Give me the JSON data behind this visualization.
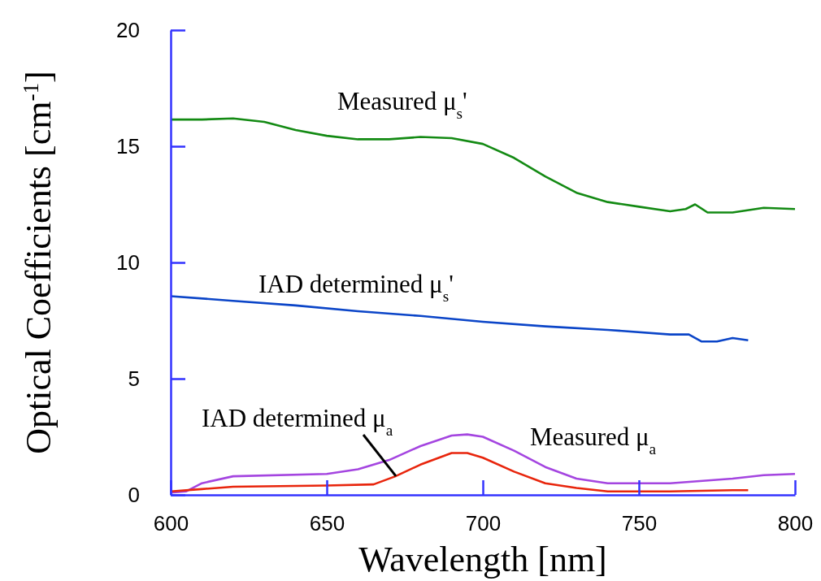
{
  "chart_data": {
    "type": "line",
    "xlabel": "Wavelength [nm]",
    "ylabel": "Optical Coefficients [cm$^{-1}$]",
    "xlim": [
      600,
      800
    ],
    "ylim": [
      0,
      20
    ],
    "xticks": [
      600,
      650,
      700,
      750,
      800
    ],
    "yticks": [
      0,
      5,
      10,
      15,
      20
    ],
    "grid": false,
    "legend": false,
    "marker": "none",
    "line_style": "solid",
    "series": [
      {
        "name": "Measured μ$_{s}$'",
        "color": "#138a13",
        "x": [
          600,
          610,
          620,
          630,
          640,
          650,
          660,
          670,
          680,
          690,
          700,
          710,
          720,
          730,
          740,
          750,
          760,
          765,
          768,
          772,
          780,
          790,
          800
        ],
        "values": [
          16.15,
          16.15,
          16.2,
          16.05,
          15.7,
          15.45,
          15.3,
          15.3,
          15.4,
          15.35,
          15.1,
          14.5,
          13.7,
          13.0,
          12.6,
          12.4,
          12.2,
          12.3,
          12.5,
          12.15,
          12.15,
          12.35,
          12.3
        ]
      },
      {
        "name": "IAD determined μ$_{s}$'",
        "color": "#0b45c8",
        "x": [
          600,
          620,
          640,
          660,
          680,
          700,
          720,
          740,
          760,
          766,
          770,
          775,
          780,
          785
        ],
        "values": [
          8.55,
          8.35,
          8.15,
          7.9,
          7.7,
          7.45,
          7.25,
          7.1,
          6.9,
          6.9,
          6.6,
          6.6,
          6.75,
          6.65
        ]
      },
      {
        "name": "Measured μ$_{a}$",
        "color": "#a445e0",
        "x": [
          600,
          605,
          610,
          620,
          650,
          660,
          670,
          680,
          690,
          695,
          700,
          710,
          720,
          730,
          740,
          760,
          780,
          790,
          800
        ],
        "values": [
          0.1,
          0.15,
          0.5,
          0.8,
          0.9,
          1.1,
          1.5,
          2.1,
          2.55,
          2.6,
          2.5,
          1.9,
          1.2,
          0.7,
          0.5,
          0.5,
          0.7,
          0.85,
          0.9
        ]
      },
      {
        "name": "IAD determined μ$_{a}$",
        "color": "#e8250c",
        "x": [
          600,
          610,
          620,
          650,
          665,
          672,
          680,
          690,
          695,
          700,
          710,
          720,
          730,
          740,
          760,
          780,
          785
        ],
        "values": [
          0.15,
          0.25,
          0.35,
          0.4,
          0.45,
          0.8,
          1.3,
          1.8,
          1.8,
          1.6,
          1.0,
          0.5,
          0.3,
          0.15,
          0.15,
          0.2,
          0.2
        ]
      }
    ]
  }
}
